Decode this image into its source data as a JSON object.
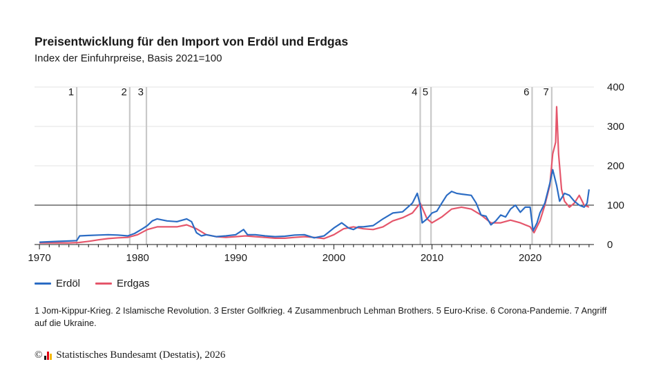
{
  "chart_data": {
    "type": "line",
    "title": "Preisentwicklung für den Import von Erdöl und Erdgas",
    "subtitle": "Index der Einfuhrpreise, Basis 2021=100",
    "xlim": [
      1969.5,
      2026.5
    ],
    "ylim": [
      0,
      400
    ],
    "x_ticks": [
      1970,
      1980,
      1990,
      2000,
      2010,
      2020
    ],
    "y_ticks": [
      0,
      100,
      200,
      300,
      400
    ],
    "reference_line": 100,
    "grid": "horizontal",
    "legend_position": "bottom-left",
    "events": [
      {
        "label": "1",
        "x": 1973.8
      },
      {
        "label": "2",
        "x": 1979.2
      },
      {
        "label": "3",
        "x": 1980.9
      },
      {
        "label": "4",
        "x": 2008.8
      },
      {
        "label": "5",
        "x": 2009.9
      },
      {
        "label": "6",
        "x": 2020.2
      },
      {
        "label": "7",
        "x": 2022.2
      }
    ],
    "series": [
      {
        "name": "Erdöl",
        "color": "#2b6cc4",
        "points": [
          [
            1970,
            6
          ],
          [
            1971,
            7
          ],
          [
            1972,
            8
          ],
          [
            1973,
            9
          ],
          [
            1973.8,
            10
          ],
          [
            1974.1,
            22
          ],
          [
            1975,
            23
          ],
          [
            1976,
            24
          ],
          [
            1977,
            25
          ],
          [
            1978,
            24
          ],
          [
            1979,
            22
          ],
          [
            1979.7,
            28
          ],
          [
            1980.5,
            40
          ],
          [
            1981,
            48
          ],
          [
            1981.5,
            60
          ],
          [
            1982,
            65
          ],
          [
            1983,
            60
          ],
          [
            1984,
            58
          ],
          [
            1985,
            65
          ],
          [
            1985.5,
            58
          ],
          [
            1986,
            30
          ],
          [
            1986.5,
            22
          ],
          [
            1987,
            25
          ],
          [
            1988,
            20
          ],
          [
            1989,
            22
          ],
          [
            1990,
            25
          ],
          [
            1990.8,
            38
          ],
          [
            1991.2,
            25
          ],
          [
            1992,
            25
          ],
          [
            1993,
            22
          ],
          [
            1994,
            20
          ],
          [
            1995,
            21
          ],
          [
            1996,
            24
          ],
          [
            1997,
            25
          ],
          [
            1998,
            17
          ],
          [
            1999,
            22
          ],
          [
            2000,
            42
          ],
          [
            2000.8,
            55
          ],
          [
            2001.5,
            42
          ],
          [
            2002,
            38
          ],
          [
            2002.5,
            45
          ],
          [
            2003,
            45
          ],
          [
            2004,
            48
          ],
          [
            2005,
            65
          ],
          [
            2006,
            80
          ],
          [
            2007,
            83
          ],
          [
            2008,
            105
          ],
          [
            2008.5,
            130
          ],
          [
            2008.8,
            100
          ],
          [
            2009,
            55
          ],
          [
            2009.5,
            65
          ],
          [
            2010,
            80
          ],
          [
            2010.5,
            85
          ],
          [
            2011,
            105
          ],
          [
            2011.5,
            125
          ],
          [
            2012,
            135
          ],
          [
            2012.5,
            130
          ],
          [
            2013,
            128
          ],
          [
            2014,
            125
          ],
          [
            2014.5,
            105
          ],
          [
            2015,
            75
          ],
          [
            2015.5,
            72
          ],
          [
            2016,
            50
          ],
          [
            2016.5,
            60
          ],
          [
            2017,
            75
          ],
          [
            2017.5,
            70
          ],
          [
            2018,
            90
          ],
          [
            2018.5,
            100
          ],
          [
            2019,
            82
          ],
          [
            2019.5,
            95
          ],
          [
            2020,
            95
          ],
          [
            2020.3,
            35
          ],
          [
            2020.7,
            55
          ],
          [
            2021,
            80
          ],
          [
            2021.5,
            105
          ],
          [
            2022,
            155
          ],
          [
            2022.3,
            190
          ],
          [
            2022.7,
            150
          ],
          [
            2023,
            110
          ],
          [
            2023.5,
            130
          ],
          [
            2024,
            125
          ],
          [
            2024.5,
            110
          ],
          [
            2025,
            100
          ],
          [
            2025.5,
            95
          ],
          [
            2025.8,
            105
          ],
          [
            2026,
            140
          ]
        ]
      },
      {
        "name": "Erdgas",
        "color": "#e5566b",
        "points": [
          [
            1970,
            4
          ],
          [
            1971,
            4
          ],
          [
            1972,
            4
          ],
          [
            1973,
            4
          ],
          [
            1974,
            5
          ],
          [
            1975,
            8
          ],
          [
            1976,
            12
          ],
          [
            1977,
            15
          ],
          [
            1978,
            17
          ],
          [
            1979,
            18
          ],
          [
            1980,
            25
          ],
          [
            1981,
            38
          ],
          [
            1982,
            45
          ],
          [
            1983,
            45
          ],
          [
            1984,
            45
          ],
          [
            1985,
            50
          ],
          [
            1986,
            40
          ],
          [
            1987,
            25
          ],
          [
            1988,
            20
          ],
          [
            1989,
            18
          ],
          [
            1990,
            20
          ],
          [
            1991,
            22
          ],
          [
            1992,
            20
          ],
          [
            1993,
            18
          ],
          [
            1994,
            16
          ],
          [
            1995,
            16
          ],
          [
            1996,
            18
          ],
          [
            1997,
            20
          ],
          [
            1998,
            18
          ],
          [
            1999,
            15
          ],
          [
            2000,
            25
          ],
          [
            2001,
            40
          ],
          [
            2002,
            45
          ],
          [
            2003,
            40
          ],
          [
            2004,
            38
          ],
          [
            2005,
            45
          ],
          [
            2006,
            60
          ],
          [
            2007,
            68
          ],
          [
            2008,
            80
          ],
          [
            2008.8,
            105
          ],
          [
            2009.5,
            65
          ],
          [
            2010,
            55
          ],
          [
            2011,
            70
          ],
          [
            2012,
            90
          ],
          [
            2013,
            95
          ],
          [
            2014,
            90
          ],
          [
            2015,
            75
          ],
          [
            2016,
            55
          ],
          [
            2017,
            55
          ],
          [
            2018,
            62
          ],
          [
            2019,
            55
          ],
          [
            2020,
            45
          ],
          [
            2020.4,
            30
          ],
          [
            2021,
            60
          ],
          [
            2021.5,
            100
          ],
          [
            2022,
            150
          ],
          [
            2022.3,
            230
          ],
          [
            2022.6,
            260
          ],
          [
            2022.7,
            350
          ],
          [
            2022.9,
            230
          ],
          [
            2023.2,
            140
          ],
          [
            2023.5,
            110
          ],
          [
            2024,
            95
          ],
          [
            2024.5,
            105
          ],
          [
            2025,
            125
          ],
          [
            2025.5,
            100
          ],
          [
            2026,
            95
          ]
        ]
      }
    ]
  },
  "footnote": "1 Jom-Kippur-Krieg. 2 Islamische Revolution. 3 Erster Golfkrieg. 4 Zusammenbruch Lehman Brothers. 5 Euro-Krise. 6 Corona-Pandemie. 7 Angriff auf die Ukraine.",
  "source": {
    "copyright": "©",
    "text": "Statistisches Bundesamt (Destatis), 2026",
    "logo_colors": [
      "#1a1a1a",
      "#e30613",
      "#f5b800"
    ]
  }
}
